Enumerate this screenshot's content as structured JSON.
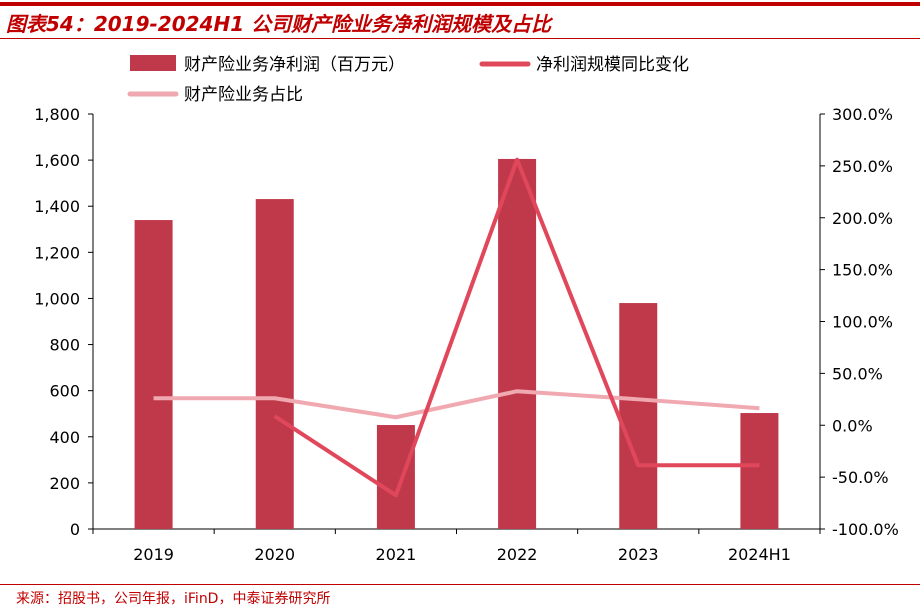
{
  "title": "图表54：2019-2024H1 公司财产险业务净利润规模及占比",
  "source": "来源：招股书，公司年报，iFinD，中泰证券研究所",
  "chart_data": {
    "type": "bar+line",
    "categories": [
      "2019",
      "2020",
      "2021",
      "2022",
      "2023",
      "2024H1"
    ],
    "series": [
      {
        "name": "财产险业务净利润（百万元）",
        "type": "bar",
        "axis": "left",
        "color": "#c0394b",
        "values": [
          1340,
          1431,
          451,
          1605,
          980,
          503
        ]
      },
      {
        "name": "净利润规模同比变化",
        "type": "line",
        "axis": "right",
        "color": "#e0475b",
        "values": [
          null,
          8.7,
          -67.5,
          256,
          -38.6,
          -38.6
        ]
      },
      {
        "name": "财产险业务占比",
        "type": "line",
        "axis": "right",
        "color": "#f0a9b0",
        "values": [
          26,
          26,
          7.7,
          32.8,
          25,
          16.4
        ]
      }
    ],
    "left_axis": {
      "ylim": [
        0,
        1800
      ],
      "ticks": [
        "0",
        "200",
        "400",
        "600",
        "800",
        "1,000",
        "1,200",
        "1,400",
        "1,600",
        "1,800"
      ]
    },
    "right_axis": {
      "ylim": [
        -100,
        300
      ],
      "ticks": [
        "-100.0%",
        "-50.0%",
        "0.0%",
        "50.0%",
        "100.0%",
        "150.0%",
        "200.0%",
        "250.0%",
        "300.0%"
      ]
    },
    "legend": "top",
    "grid": false
  }
}
